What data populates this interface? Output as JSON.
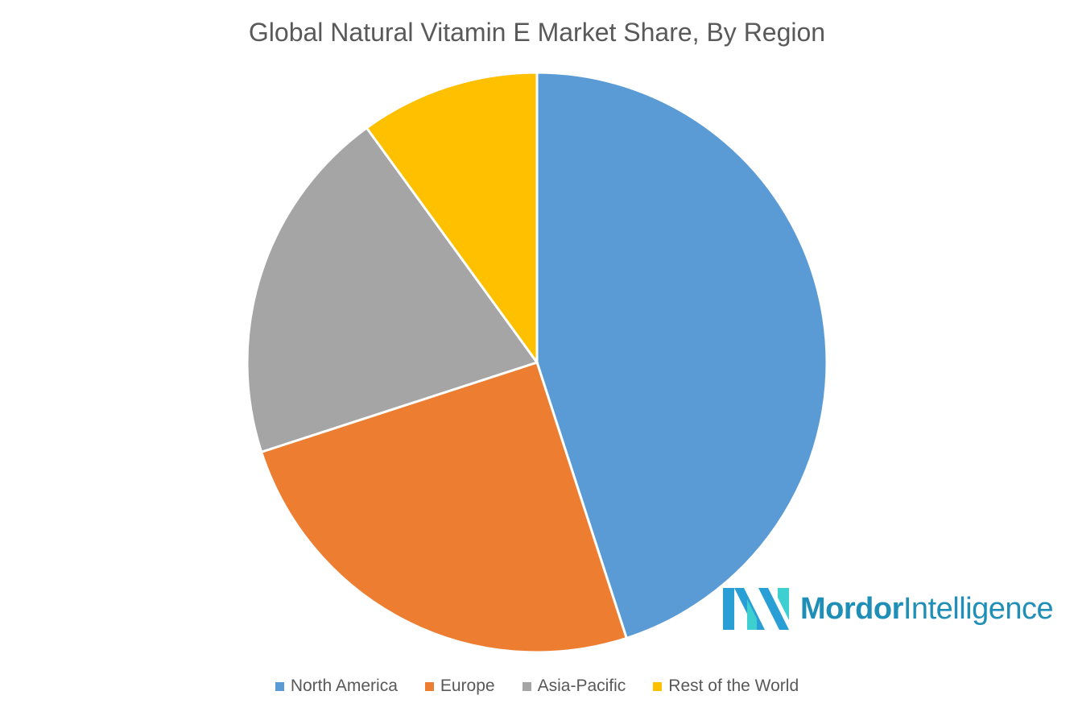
{
  "chart_data": {
    "type": "pie",
    "title": "Global Natural Vitamin E Market Share, By Region",
    "categories": [
      "North America",
      "Europe",
      "Asia-Pacific",
      "Rest of the World"
    ],
    "values": [
      45,
      25,
      20,
      10
    ],
    "colors": [
      "#5B9BD5",
      "#ED7D31",
      "#A5A5A5",
      "#FFC000"
    ],
    "legend_position": "bottom",
    "start_angle_deg": 0,
    "direction": "clockwise"
  },
  "logo": {
    "word1": "Mordor",
    "word2": "Intelligence",
    "colors": [
      "#2a9fd6",
      "#3ecfd0"
    ]
  }
}
